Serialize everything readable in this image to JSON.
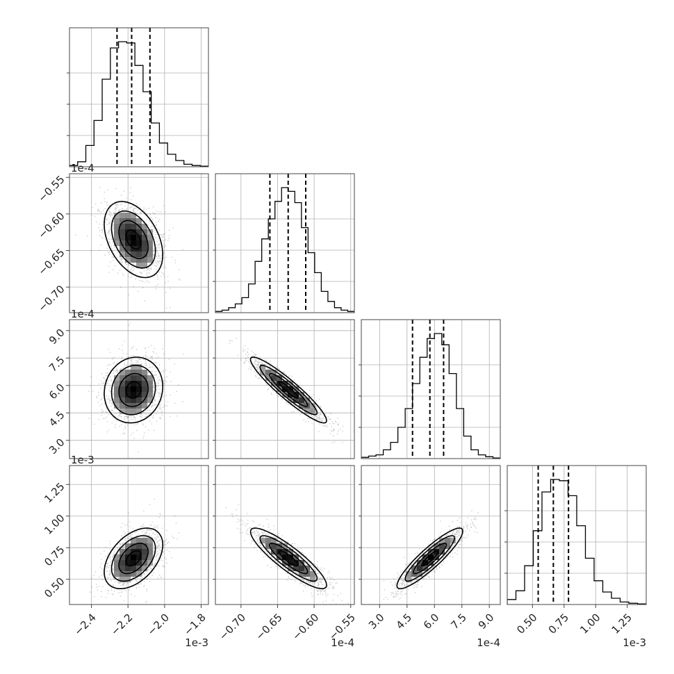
{
  "chart_data": {
    "type": "scatter",
    "kind": "corner plot",
    "grid": true,
    "parameters": [
      {
        "offset_text": "1e-3",
        "range": [
          -2.52,
          -1.76
        ],
        "ticks": [
          -2.4,
          -2.2,
          -2.0,
          -1.8
        ],
        "tick_labels": [
          "−2.4",
          "−2.2",
          "−2.0",
          "−1.8"
        ],
        "quantiles": [
          -2.26,
          -2.18,
          -2.08
        ],
        "hist_counts": [
          1,
          4,
          17,
          37,
          70,
          95,
          100,
          99,
          81,
          60,
          35,
          19,
          10,
          5,
          2,
          1,
          0.5
        ]
      },
      {
        "offset_text": "1e-4",
        "range": [
          -0.735,
          -0.545
        ],
        "ticks": [
          -0.7,
          -0.65,
          -0.6,
          -0.55
        ],
        "tick_labels": [
          "−0.70",
          "−0.65",
          "−0.60",
          "−0.55"
        ],
        "quantiles": [
          -0.6605,
          -0.6355,
          -0.6115
        ],
        "hist_counts": [
          1,
          2,
          4,
          7,
          12,
          23,
          41,
          59,
          75,
          89,
          100,
          97,
          88,
          68,
          48,
          32,
          17,
          9,
          4,
          2,
          1
        ]
      },
      {
        "offset_text": "1e-4",
        "range": [
          2.0,
          9.6
        ],
        "ticks": [
          3.0,
          4.5,
          6.0,
          7.5,
          9.0
        ],
        "tick_labels": [
          "3.0",
          "4.5",
          "6.0",
          "7.5",
          "9.0"
        ],
        "quantiles": [
          4.8,
          5.75,
          6.5
        ],
        "hist_counts": [
          1,
          2,
          3,
          7,
          13,
          25,
          40,
          60,
          81,
          96,
          100,
          91,
          68,
          40,
          18,
          7,
          3,
          1.5,
          0.5
        ]
      },
      {
        "offset_text": "1e-3",
        "range": [
          0.3,
          1.4
        ],
        "ticks": [
          0.5,
          0.75,
          1.0,
          1.25
        ],
        "tick_labels": [
          "0.50",
          "0.75",
          "1.00",
          "1.25"
        ],
        "quantiles": [
          0.545,
          0.665,
          0.785
        ],
        "hist_counts": [
          4,
          11,
          31,
          59,
          90,
          100,
          99,
          87,
          63,
          37,
          19,
          10,
          5,
          2,
          1,
          0.5
        ]
      }
    ],
    "pairs": [
      {
        "row": 1,
        "col": 0,
        "mean": [
          -2.17,
          -0.635
        ],
        "sd": [
          0.08,
          0.026
        ],
        "corr": -0.4
      },
      {
        "row": 2,
        "col": 0,
        "mean": [
          -2.17,
          5.75
        ],
        "sd": [
          0.08,
          0.9
        ],
        "corr": 0.1
      },
      {
        "row": 2,
        "col": 1,
        "mean": [
          -0.635,
          5.75
        ],
        "sd": [
          0.026,
          0.9
        ],
        "corr": -0.93
      },
      {
        "row": 3,
        "col": 0,
        "mean": [
          -2.17,
          0.665
        ],
        "sd": [
          0.08,
          0.12
        ],
        "corr": 0.45
      },
      {
        "row": 3,
        "col": 1,
        "mean": [
          -0.635,
          0.665
        ],
        "sd": [
          0.026,
          0.12
        ],
        "corr": -0.88
      },
      {
        "row": 3,
        "col": 2,
        "mean": [
          5.75,
          0.665
        ],
        "sd": [
          0.9,
          0.12
        ],
        "corr": 0.9
      }
    ]
  }
}
